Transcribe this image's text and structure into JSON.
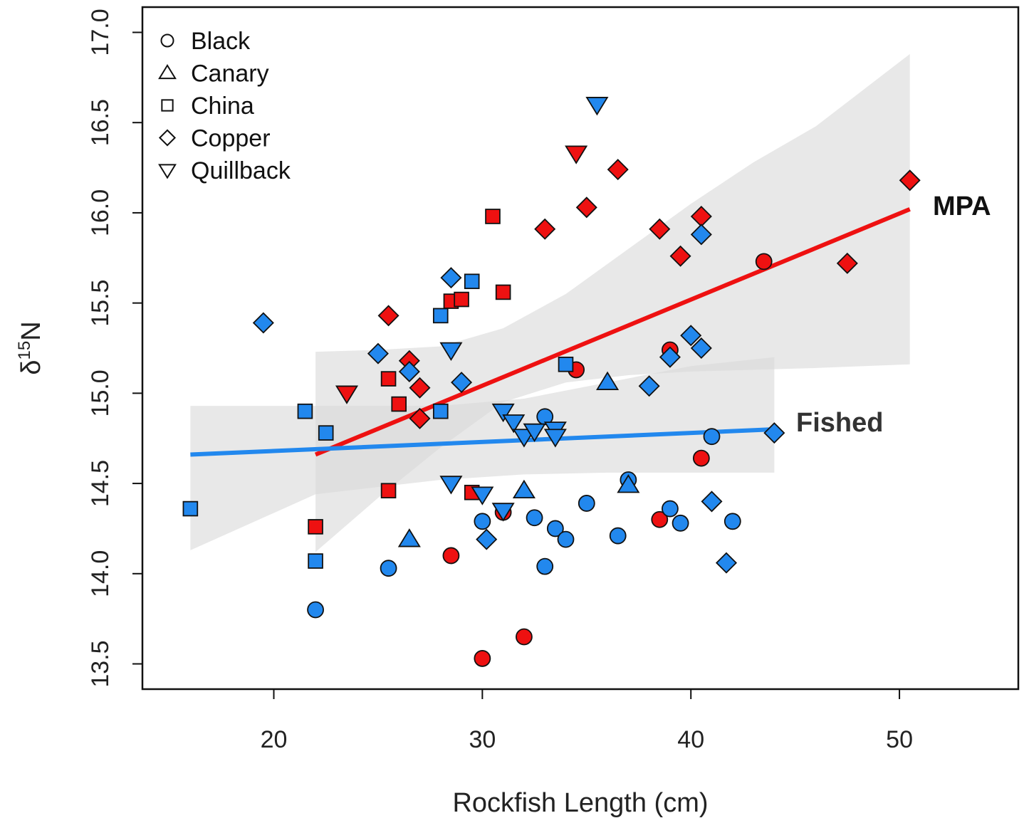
{
  "chart_data": {
    "type": "scatter",
    "xlabel": "Rockfish Length (cm)",
    "ylabel": "δ",
    "ylabel_sup": "15",
    "ylabel_tail": "N",
    "xlim": [
      13.7,
      55.7
    ],
    "ylim": [
      13.36,
      17.14
    ],
    "xticks": [
      20,
      30,
      40,
      50
    ],
    "xtick_labels": [
      "20",
      "30",
      "40",
      "50"
    ],
    "yticks": [
      13.5,
      14.0,
      14.5,
      15.0,
      15.5,
      16.0,
      16.5,
      17.0
    ],
    "ytick_labels": [
      "13.5",
      "14.0",
      "14.5",
      "15.0",
      "15.5",
      "16.0",
      "16.5",
      "17.0"
    ],
    "grid": false,
    "legend_position": "top-left",
    "legend": [
      {
        "shape": "circle",
        "label": "Black"
      },
      {
        "shape": "triangle",
        "label": "Canary"
      },
      {
        "shape": "square",
        "label": "China"
      },
      {
        "shape": "diamond",
        "label": "Copper"
      },
      {
        "shape": "down-triangle",
        "label": "Quillback"
      }
    ],
    "colors": {
      "MPA": "#ee1111",
      "Fished": "#2288ee",
      "ribbon": "#d9d9d9"
    },
    "series": [
      {
        "name": "MPA",
        "fit": {
          "x": [
            22,
            50.5
          ],
          "y": [
            14.66,
            16.02
          ]
        },
        "ci": {
          "x": [
            22,
            25,
            28,
            31,
            34,
            37,
            40,
            43,
            46,
            50.5
          ],
          "lower": [
            14.12,
            14.42,
            14.7,
            14.95,
            15.06,
            15.1,
            15.12,
            15.13,
            15.14,
            15.16
          ],
          "upper": [
            15.23,
            15.24,
            15.26,
            15.36,
            15.55,
            15.8,
            16.05,
            16.28,
            16.48,
            16.88
          ]
        },
        "points": [
          {
            "shape": "diamond",
            "x": 25.5,
            "y": 15.43
          },
          {
            "shape": "diamond",
            "x": 26.5,
            "y": 15.18
          },
          {
            "shape": "diamond",
            "x": 27,
            "y": 15.03
          },
          {
            "shape": "diamond",
            "x": 27,
            "y": 14.86
          },
          {
            "shape": "diamond",
            "x": 33,
            "y": 15.91
          },
          {
            "shape": "diamond",
            "x": 35,
            "y": 16.03
          },
          {
            "shape": "diamond",
            "x": 36.5,
            "y": 16.24
          },
          {
            "shape": "diamond",
            "x": 38.5,
            "y": 15.91
          },
          {
            "shape": "diamond",
            "x": 39.5,
            "y": 15.76
          },
          {
            "shape": "diamond",
            "x": 40.5,
            "y": 15.98
          },
          {
            "shape": "diamond",
            "x": 47.5,
            "y": 15.72
          },
          {
            "shape": "diamond",
            "x": 50.5,
            "y": 16.18
          },
          {
            "shape": "square",
            "x": 22,
            "y": 14.26
          },
          {
            "shape": "square",
            "x": 25.5,
            "y": 15.08
          },
          {
            "shape": "square",
            "x": 25.5,
            "y": 14.46
          },
          {
            "shape": "square",
            "x": 26,
            "y": 14.94
          },
          {
            "shape": "square",
            "x": 28.5,
            "y": 15.51
          },
          {
            "shape": "square",
            "x": 29,
            "y": 15.52
          },
          {
            "shape": "square",
            "x": 29.5,
            "y": 14.45
          },
          {
            "shape": "square",
            "x": 30.5,
            "y": 15.98
          },
          {
            "shape": "square",
            "x": 31,
            "y": 15.56
          },
          {
            "shape": "circle",
            "x": 28.5,
            "y": 14.1
          },
          {
            "shape": "circle",
            "x": 30,
            "y": 13.53
          },
          {
            "shape": "circle",
            "x": 31,
            "y": 14.34
          },
          {
            "shape": "circle",
            "x": 32,
            "y": 13.65
          },
          {
            "shape": "circle",
            "x": 34.5,
            "y": 15.13
          },
          {
            "shape": "circle",
            "x": 38.5,
            "y": 14.3
          },
          {
            "shape": "circle",
            "x": 39,
            "y": 15.24
          },
          {
            "shape": "circle",
            "x": 40.5,
            "y": 14.64
          },
          {
            "shape": "circle",
            "x": 43.5,
            "y": 15.73
          },
          {
            "shape": "down-triangle",
            "x": 23.5,
            "y": 15.0
          },
          {
            "shape": "down-triangle",
            "x": 34.5,
            "y": 16.33
          }
        ]
      },
      {
        "name": "Fished",
        "fit": {
          "x": [
            16,
            44
          ],
          "y": [
            14.66,
            14.8
          ]
        },
        "ci": {
          "x": [
            16,
            22,
            28,
            32,
            36,
            40,
            44
          ],
          "lower": [
            14.13,
            14.44,
            14.52,
            14.55,
            14.56,
            14.56,
            14.56
          ],
          "upper": [
            14.93,
            14.93,
            14.93,
            14.97,
            15.06,
            15.15,
            15.2
          ]
        },
        "points": [
          {
            "shape": "square",
            "x": 16,
            "y": 14.36
          },
          {
            "shape": "square",
            "x": 21.5,
            "y": 14.9
          },
          {
            "shape": "square",
            "x": 22,
            "y": 14.07
          },
          {
            "shape": "square",
            "x": 22.5,
            "y": 14.78
          },
          {
            "shape": "square",
            "x": 28,
            "y": 15.43
          },
          {
            "shape": "square",
            "x": 28,
            "y": 14.9
          },
          {
            "shape": "square",
            "x": 29.5,
            "y": 15.62
          },
          {
            "shape": "square",
            "x": 34,
            "y": 15.16
          },
          {
            "shape": "diamond",
            "x": 19.5,
            "y": 15.39
          },
          {
            "shape": "diamond",
            "x": 25,
            "y": 15.22
          },
          {
            "shape": "diamond",
            "x": 26.5,
            "y": 15.12
          },
          {
            "shape": "diamond",
            "x": 28.5,
            "y": 15.64
          },
          {
            "shape": "diamond",
            "x": 29,
            "y": 15.06
          },
          {
            "shape": "diamond",
            "x": 30.2,
            "y": 14.19
          },
          {
            "shape": "diamond",
            "x": 38,
            "y": 15.04
          },
          {
            "shape": "diamond",
            "x": 39,
            "y": 15.2
          },
          {
            "shape": "diamond",
            "x": 40,
            "y": 15.32
          },
          {
            "shape": "diamond",
            "x": 40.5,
            "y": 15.25
          },
          {
            "shape": "diamond",
            "x": 40.5,
            "y": 15.88
          },
          {
            "shape": "diamond",
            "x": 41,
            "y": 14.4
          },
          {
            "shape": "diamond",
            "x": 41.7,
            "y": 14.06
          },
          {
            "shape": "diamond",
            "x": 44,
            "y": 14.78
          },
          {
            "shape": "circle",
            "x": 22,
            "y": 13.8
          },
          {
            "shape": "circle",
            "x": 25.5,
            "y": 14.03
          },
          {
            "shape": "circle",
            "x": 30,
            "y": 14.29
          },
          {
            "shape": "circle",
            "x": 32.5,
            "y": 14.31
          },
          {
            "shape": "circle",
            "x": 33,
            "y": 14.87
          },
          {
            "shape": "circle",
            "x": 33,
            "y": 14.04
          },
          {
            "shape": "circle",
            "x": 33.5,
            "y": 14.25
          },
          {
            "shape": "circle",
            "x": 34,
            "y": 14.19
          },
          {
            "shape": "circle",
            "x": 35,
            "y": 14.39
          },
          {
            "shape": "circle",
            "x": 36.5,
            "y": 14.21
          },
          {
            "shape": "circle",
            "x": 37,
            "y": 14.52
          },
          {
            "shape": "circle",
            "x": 39,
            "y": 14.36
          },
          {
            "shape": "circle",
            "x": 39.5,
            "y": 14.28
          },
          {
            "shape": "circle",
            "x": 41,
            "y": 14.76
          },
          {
            "shape": "circle",
            "x": 42,
            "y": 14.29
          },
          {
            "shape": "triangle",
            "x": 26.5,
            "y": 14.19
          },
          {
            "shape": "triangle",
            "x": 32,
            "y": 14.46
          },
          {
            "shape": "triangle",
            "x": 36,
            "y": 15.06
          },
          {
            "shape": "triangle",
            "x": 37,
            "y": 14.49
          },
          {
            "shape": "down-triangle",
            "x": 28.5,
            "y": 14.5
          },
          {
            "shape": "down-triangle",
            "x": 28.5,
            "y": 15.24
          },
          {
            "shape": "down-triangle",
            "x": 30,
            "y": 14.44
          },
          {
            "shape": "down-triangle",
            "x": 31,
            "y": 14.35
          },
          {
            "shape": "down-triangle",
            "x": 31,
            "y": 14.9
          },
          {
            "shape": "down-triangle",
            "x": 31.5,
            "y": 14.84
          },
          {
            "shape": "down-triangle",
            "x": 32,
            "y": 14.76
          },
          {
            "shape": "down-triangle",
            "x": 32.5,
            "y": 14.79
          },
          {
            "shape": "down-triangle",
            "x": 33.5,
            "y": 14.8
          },
          {
            "shape": "down-triangle",
            "x": 33.5,
            "y": 14.76
          },
          {
            "shape": "down-triangle",
            "x": 35.5,
            "y": 16.6
          }
        ]
      }
    ]
  }
}
